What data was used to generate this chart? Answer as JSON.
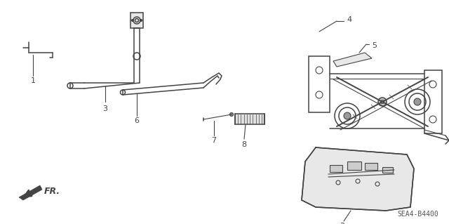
{
  "bg_color": "#ffffff",
  "line_color": "#444444",
  "fig_width": 6.4,
  "fig_height": 3.19,
  "dpi": 100,
  "diagram_code": "SEA4-B4400"
}
